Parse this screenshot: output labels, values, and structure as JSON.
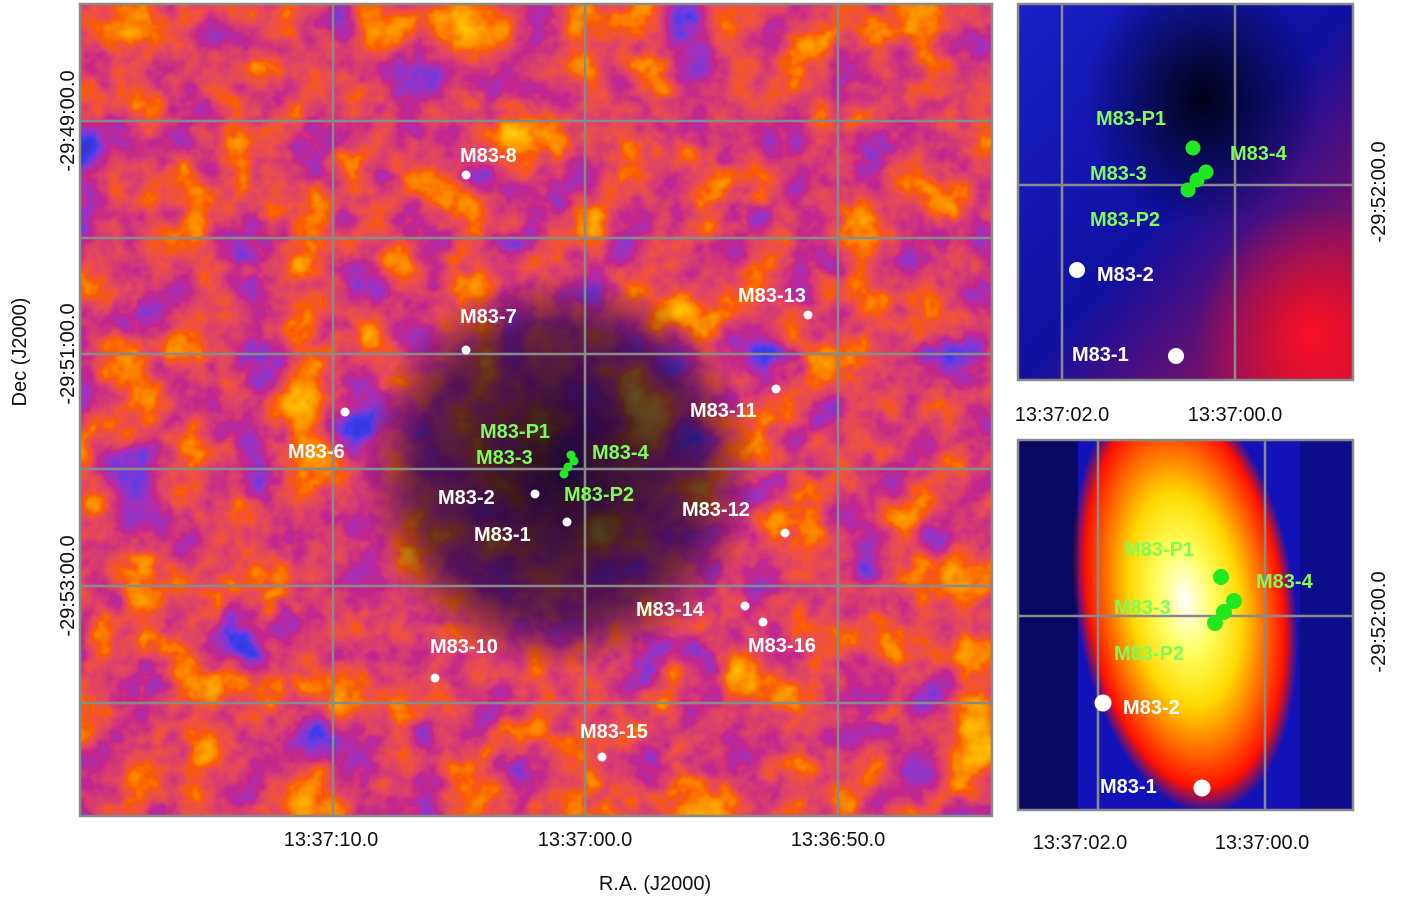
{
  "main": {
    "xlabel": "R.A. (J2000)",
    "ylabel": "Dec (J2000)",
    "xticks": [
      "13:37:10.0",
      "13:37:00.0",
      "13:36:50.0"
    ],
    "yticks": [
      "-29:49:00.0",
      "-29:51:00.0",
      "-29:53:00.0"
    ],
    "sources_white": [
      {
        "name": "M83-8"
      },
      {
        "name": "M83-13"
      },
      {
        "name": "M83-7"
      },
      {
        "name": "M83-11"
      },
      {
        "name": "M83-6"
      },
      {
        "name": "M83-2"
      },
      {
        "name": "M83-1"
      },
      {
        "name": "M83-12"
      },
      {
        "name": "M83-14"
      },
      {
        "name": "M83-16"
      },
      {
        "name": "M83-10"
      },
      {
        "name": "M83-15"
      }
    ],
    "sources_green": [
      {
        "name": "M83-P1"
      },
      {
        "name": "M83-3"
      },
      {
        "name": "M83-4"
      },
      {
        "name": "M83-P2"
      }
    ]
  },
  "inset_top": {
    "xticks": [
      "13:37:02.0",
      "13:37:00.0"
    ],
    "ytick": "-29:52:00.0",
    "labels_green": [
      "M83-P1",
      "M83-4",
      "M83-3",
      "M83-P2"
    ],
    "labels_white": [
      "M83-2",
      "M83-1"
    ]
  },
  "inset_bottom": {
    "xticks": [
      "13:37:02.0",
      "13:37:00.0"
    ],
    "ytick": "-29:52:00.0",
    "labels_green": [
      "M83-P1",
      "M83-4",
      "M83-3",
      "M83-P2"
    ],
    "labels_white": [
      "M83-2",
      "M83-1"
    ]
  },
  "colors": {
    "colormap": [
      "#000010",
      "#0a0a60",
      "#1010d0",
      "#c01030",
      "#ff2000",
      "#ff8c00",
      "#ffe000",
      "#ffffff"
    ],
    "grid": "#8a8a8a",
    "source_white": "#ffffff",
    "source_green": "#22e822",
    "label_green": "#7dfc5a"
  }
}
